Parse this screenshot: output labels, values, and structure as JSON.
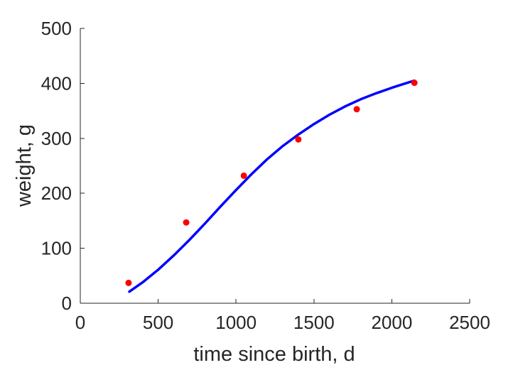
{
  "chart_data": {
    "type": "scatter",
    "title": "",
    "xlabel": "time since birth, d",
    "ylabel": "weight, g",
    "xlim": [
      0,
      2500
    ],
    "ylim": [
      0,
      500
    ],
    "xticks": [
      0,
      500,
      1000,
      1500,
      2000,
      2500
    ],
    "yticks": [
      0,
      100,
      200,
      300,
      400,
      500
    ],
    "grid": false,
    "legend": "none",
    "axes_box": false,
    "series": [
      {
        "kind": "scatter",
        "color": "#ff0000",
        "x": [
          310,
          680,
          1050,
          1400,
          1775,
          2145
        ],
        "y": [
          37,
          147,
          232,
          298,
          353,
          401
        ]
      },
      {
        "kind": "line",
        "color": "#0000ff",
        "x": [
          315,
          400,
          500,
          600,
          700,
          800,
          900,
          1000,
          1100,
          1200,
          1300,
          1400,
          1500,
          1600,
          1700,
          1800,
          1900,
          2000,
          2100,
          2145
        ],
        "y": [
          21,
          38,
          61,
          87,
          115,
          145,
          176,
          206,
          235,
          262,
          286,
          307,
          326,
          343,
          358,
          371,
          382,
          392,
          401,
          405
        ]
      }
    ]
  }
}
